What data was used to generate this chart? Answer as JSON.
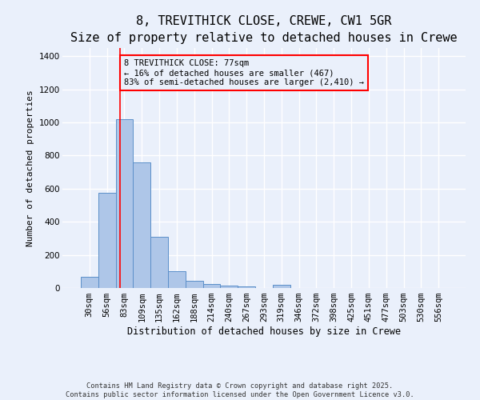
{
  "title": "8, TREVITHICK CLOSE, CREWE, CW1 5GR",
  "subtitle": "Size of property relative to detached houses in Crewe",
  "xlabel": "Distribution of detached houses by size in Crewe",
  "ylabel": "Number of detached properties",
  "footnote1": "Contains HM Land Registry data © Crown copyright and database right 2025.",
  "footnote2": "Contains public sector information licensed under the Open Government Licence v3.0.",
  "bar_labels": [
    "30sqm",
    "56sqm",
    "83sqm",
    "109sqm",
    "135sqm",
    "162sqm",
    "188sqm",
    "214sqm",
    "240sqm",
    "267sqm",
    "293sqm",
    "319sqm",
    "346sqm",
    "372sqm",
    "398sqm",
    "425sqm",
    "451sqm",
    "477sqm",
    "503sqm",
    "530sqm",
    "556sqm"
  ],
  "bar_values": [
    70,
    575,
    1020,
    760,
    310,
    100,
    42,
    25,
    15,
    10,
    0,
    18,
    0,
    0,
    0,
    0,
    0,
    0,
    0,
    0,
    0
  ],
  "bar_color": "#aec6e8",
  "bar_edge_color": "#5b8fc9",
  "vline_x": 1.77,
  "vline_color": "red",
  "annotation_title": "8 TREVITHICK CLOSE: 77sqm",
  "annotation_line1": "← 16% of detached houses are smaller (467)",
  "annotation_line2": "83% of semi-detached houses are larger (2,410) →",
  "annotation_box_color": "red",
  "ylim": [
    0,
    1450
  ],
  "yticks": [
    0,
    200,
    400,
    600,
    800,
    1000,
    1200,
    1400
  ],
  "bg_color": "#eaf0fb",
  "grid_color": "white",
  "title_fontsize": 11,
  "subtitle_fontsize": 9.5,
  "xlabel_fontsize": 8.5,
  "ylabel_fontsize": 8,
  "tick_fontsize": 7.5,
  "annotation_fontsize": 7.5,
  "footnote_fontsize": 6.2
}
